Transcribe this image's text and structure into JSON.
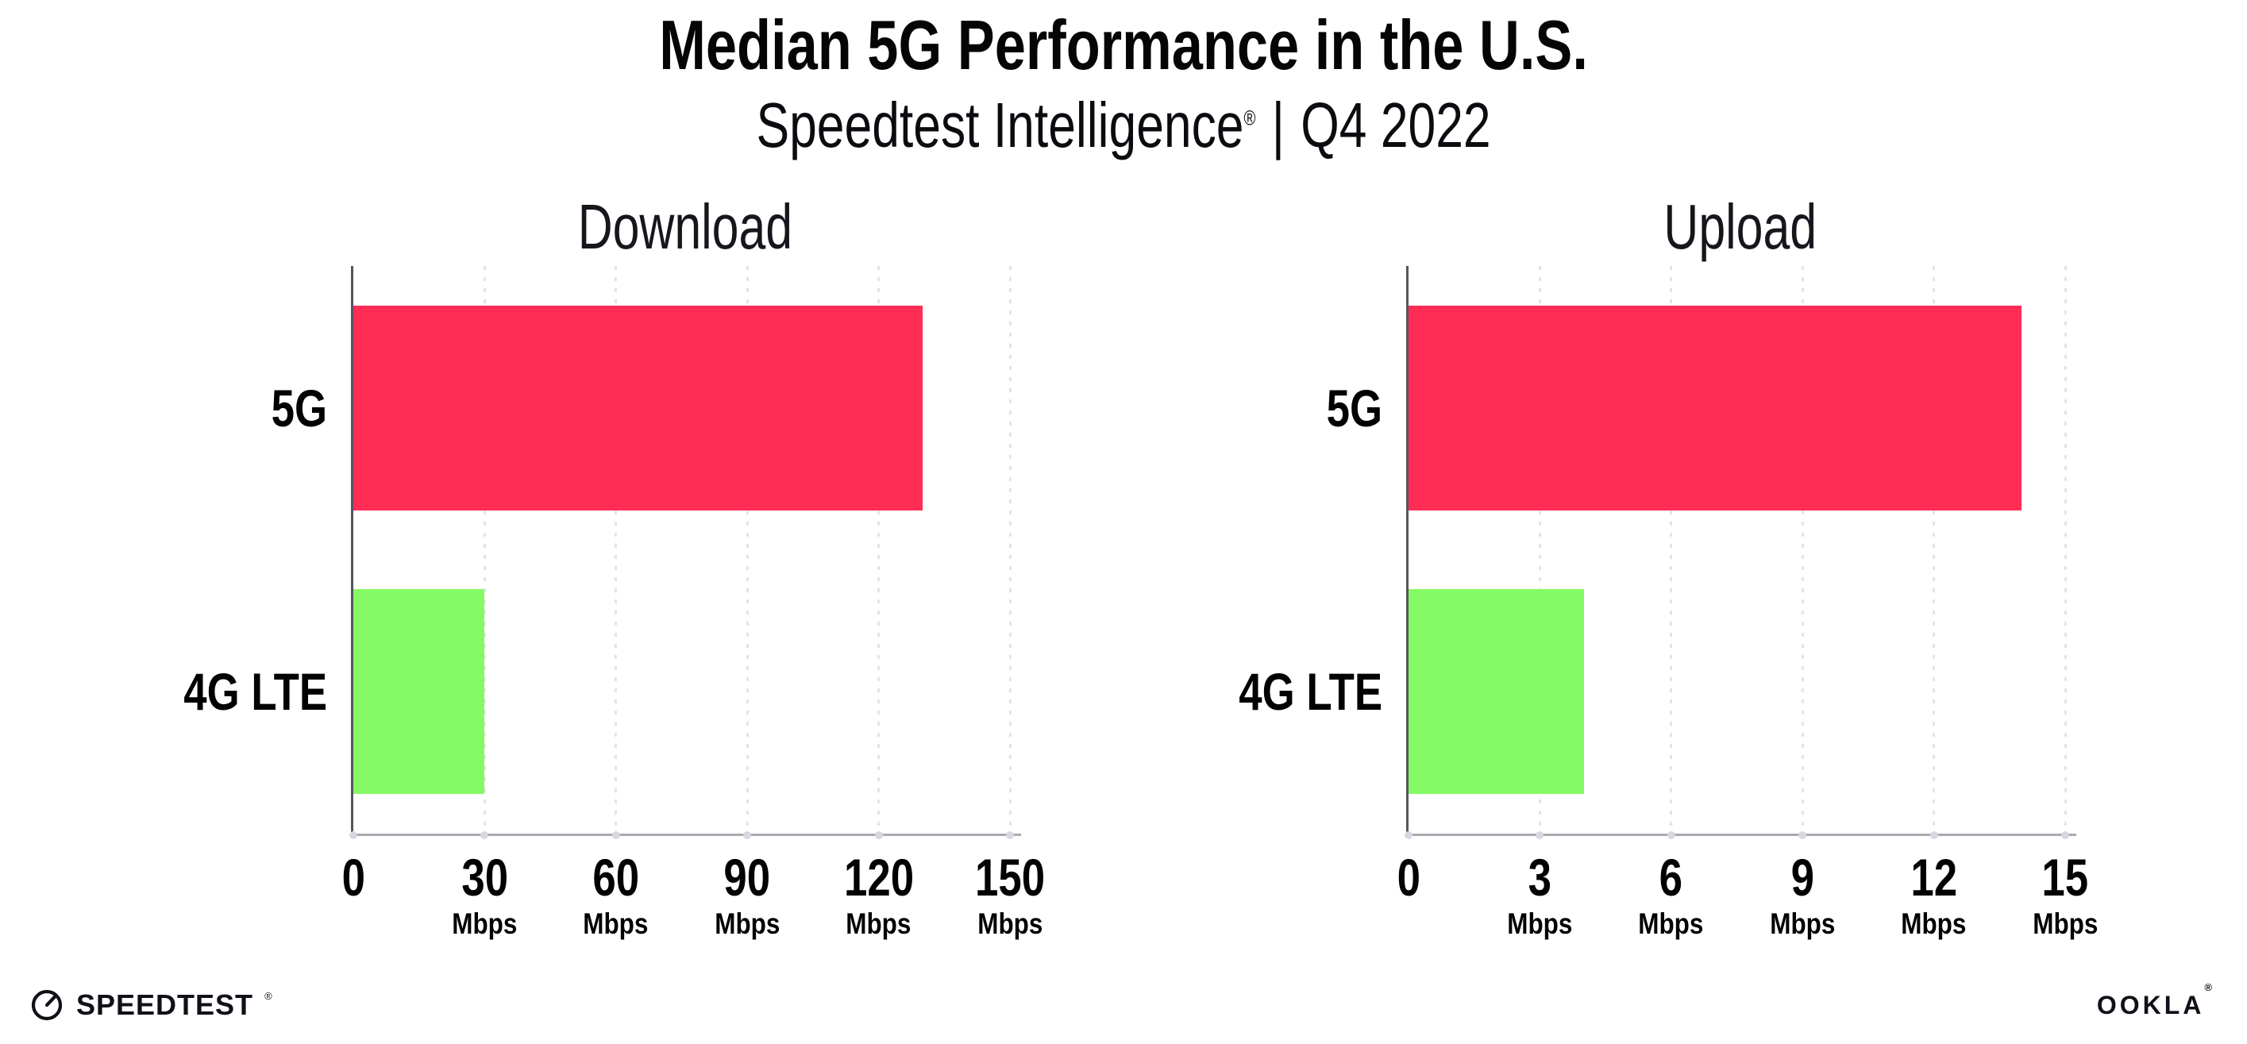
{
  "header": {
    "title": "Median 5G Performance in the U.S.",
    "subtitle": {
      "brand": "Speedtest Intelligence",
      "registered_mark": "®",
      "separator": "|",
      "period": "Q4 2022"
    }
  },
  "chart_data": [
    {
      "type": "bar",
      "orientation": "horizontal",
      "title": "Download",
      "categories": [
        "5G",
        "4G LTE"
      ],
      "values": [
        130,
        30
      ],
      "unit": "Mbps",
      "xlim": [
        0,
        150
      ],
      "ticks": [
        0,
        30,
        60,
        90,
        120,
        150
      ],
      "tick_unit_label": "Mbps",
      "unit_shown_on_zero_tick": false,
      "grid": "dotted-vertical",
      "legend": "none",
      "bar_colors": [
        "#ff2d55",
        "#85fa64"
      ]
    },
    {
      "type": "bar",
      "orientation": "horizontal",
      "title": "Upload",
      "categories": [
        "5G",
        "4G LTE"
      ],
      "values": [
        14,
        4
      ],
      "unit": "Mbps",
      "xlim": [
        0,
        15
      ],
      "ticks": [
        0,
        3,
        6,
        9,
        12,
        15
      ],
      "tick_unit_label": "Mbps",
      "unit_shown_on_zero_tick": false,
      "grid": "dotted-vertical",
      "legend": "none",
      "bar_colors": [
        "#ff2d55",
        "#85fa64"
      ]
    }
  ],
  "colors": {
    "bar_5g": "#ff2d55",
    "bar_4g_lte": "#85fa64",
    "y_axis_line": "#55555f",
    "x_axis_line": "#a9a9b2",
    "gridline": "#e3e3ee",
    "axis_tick_dot": "#d7d7e2",
    "background": "#ffffff",
    "text": "#020205"
  },
  "footer": {
    "speedtest_logo_text": "SPEEDTEST",
    "speedtest_mark": "®",
    "ookla_logo_text": "OOKLA",
    "ookla_mark": "®"
  }
}
